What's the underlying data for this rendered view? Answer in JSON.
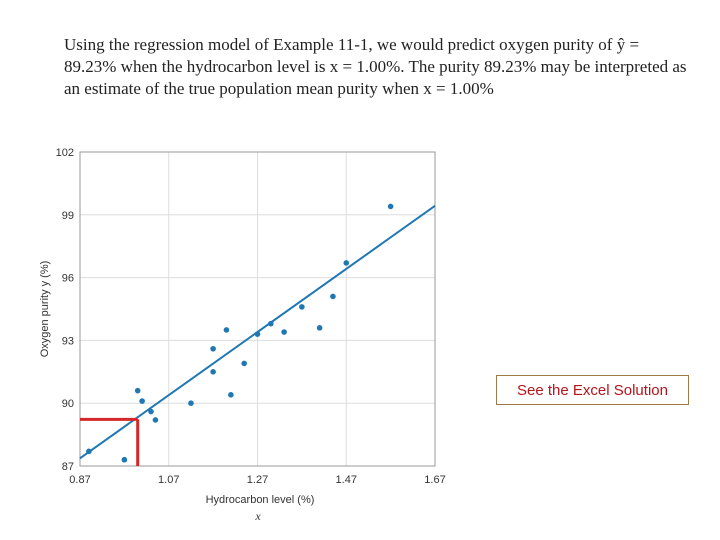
{
  "intro": {
    "line1": "Using the regression model of Example 11-1, we would predict oxygen purity of ŷ =",
    "line2": "89.23% when the hydrocarbon level is x = 1.00%. The purity 89.23% may be interpreted as",
    "line3": "an estimate of the true population mean purity when x = 1.00%"
  },
  "excel_button": {
    "label": "See the Excel Solution"
  },
  "chart_data": {
    "type": "scatter",
    "xlabel": "Hydrocarbon level (%)",
    "xlabel_symbol": "x",
    "ylabel": "Oxygen purity y (%)",
    "xlim": [
      0.87,
      1.67
    ],
    "ylim": [
      87,
      102
    ],
    "x_ticks": [
      "0.87",
      "1.07",
      "1.27",
      "1.47",
      "1.67"
    ],
    "y_ticks": [
      "87",
      "90",
      "93",
      "96",
      "99",
      "102"
    ],
    "grid": true,
    "points": [
      {
        "x": 0.89,
        "y": 87.7
      },
      {
        "x": 0.97,
        "y": 87.3
      },
      {
        "x": 1.0,
        "y": 90.6
      },
      {
        "x": 1.01,
        "y": 90.1
      },
      {
        "x": 1.03,
        "y": 89.6
      },
      {
        "x": 1.04,
        "y": 89.2
      },
      {
        "x": 1.12,
        "y": 90.0
      },
      {
        "x": 1.17,
        "y": 91.5
      },
      {
        "x": 1.17,
        "y": 92.6
      },
      {
        "x": 1.2,
        "y": 93.5
      },
      {
        "x": 1.21,
        "y": 90.4
      },
      {
        "x": 1.24,
        "y": 91.9
      },
      {
        "x": 1.27,
        "y": 93.3
      },
      {
        "x": 1.3,
        "y": 93.8
      },
      {
        "x": 1.33,
        "y": 93.4
      },
      {
        "x": 1.37,
        "y": 94.6
      },
      {
        "x": 1.41,
        "y": 93.6
      },
      {
        "x": 1.44,
        "y": 95.1
      },
      {
        "x": 1.47,
        "y": 96.7
      },
      {
        "x": 1.57,
        "y": 99.4
      }
    ],
    "regression_line": {
      "x_start": 0.87,
      "y_start": 87.37,
      "x_end": 1.67,
      "y_end": 99.43,
      "color": "#1f77b4"
    },
    "prediction": {
      "x": 1.0,
      "y": 89.23,
      "color": "#d62728"
    },
    "point_color": "#1f77b4"
  }
}
